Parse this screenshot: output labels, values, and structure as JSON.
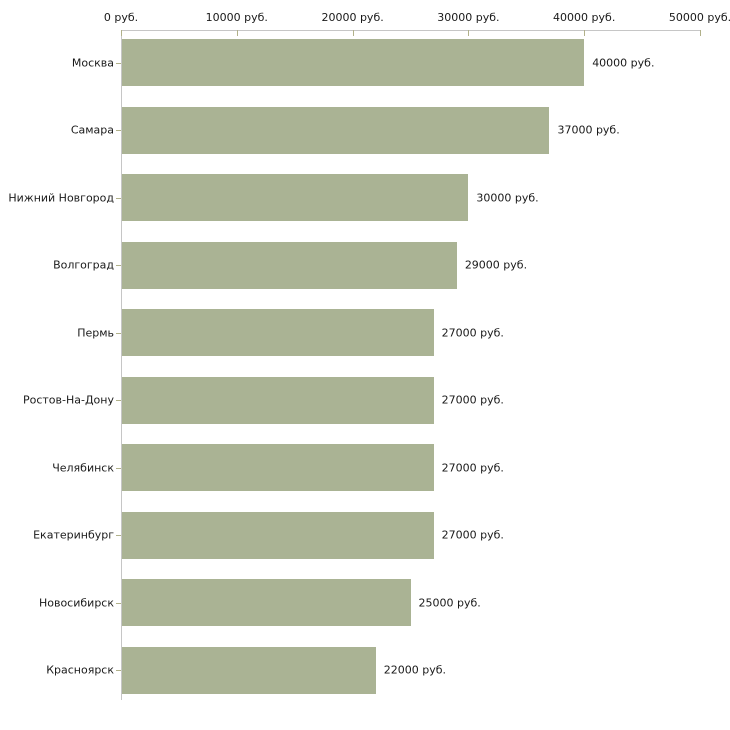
{
  "chart_data": {
    "type": "bar",
    "orientation": "horizontal",
    "title": "",
    "xlabel": "",
    "ylabel": "",
    "categories": [
      "Москва",
      "Самара",
      "Нижний Новгород",
      "Волгоград",
      "Пермь",
      "Ростов-На-Дону",
      "Челябинск",
      "Екатеринбург",
      "Новосибирск",
      "Красноярск"
    ],
    "values": [
      40000,
      37000,
      30000,
      29000,
      27000,
      27000,
      27000,
      27000,
      25000,
      22000
    ],
    "value_labels": [
      "40000 руб.",
      "37000 руб.",
      "30000 руб.",
      "29000 руб.",
      "27000 руб.",
      "27000 руб.",
      "27000 руб.",
      "27000 руб.",
      "25000 руб.",
      "22000 руб."
    ],
    "x_axis": {
      "position": "top",
      "range": [
        0,
        50000
      ],
      "ticks": [
        0,
        10000,
        20000,
        30000,
        40000,
        50000
      ],
      "tick_labels": [
        "0 руб.",
        "10000 руб.",
        "20000 руб.",
        "30000 руб.",
        "40000 руб.",
        "50000 руб."
      ]
    },
    "grid": false,
    "legend": false,
    "colors": {
      "bar": "#aab394",
      "axis_line": "#c6c6c6",
      "tick_mark": "#b1b18a",
      "text": "#1a1a1a",
      "background": "#ffffff"
    }
  }
}
